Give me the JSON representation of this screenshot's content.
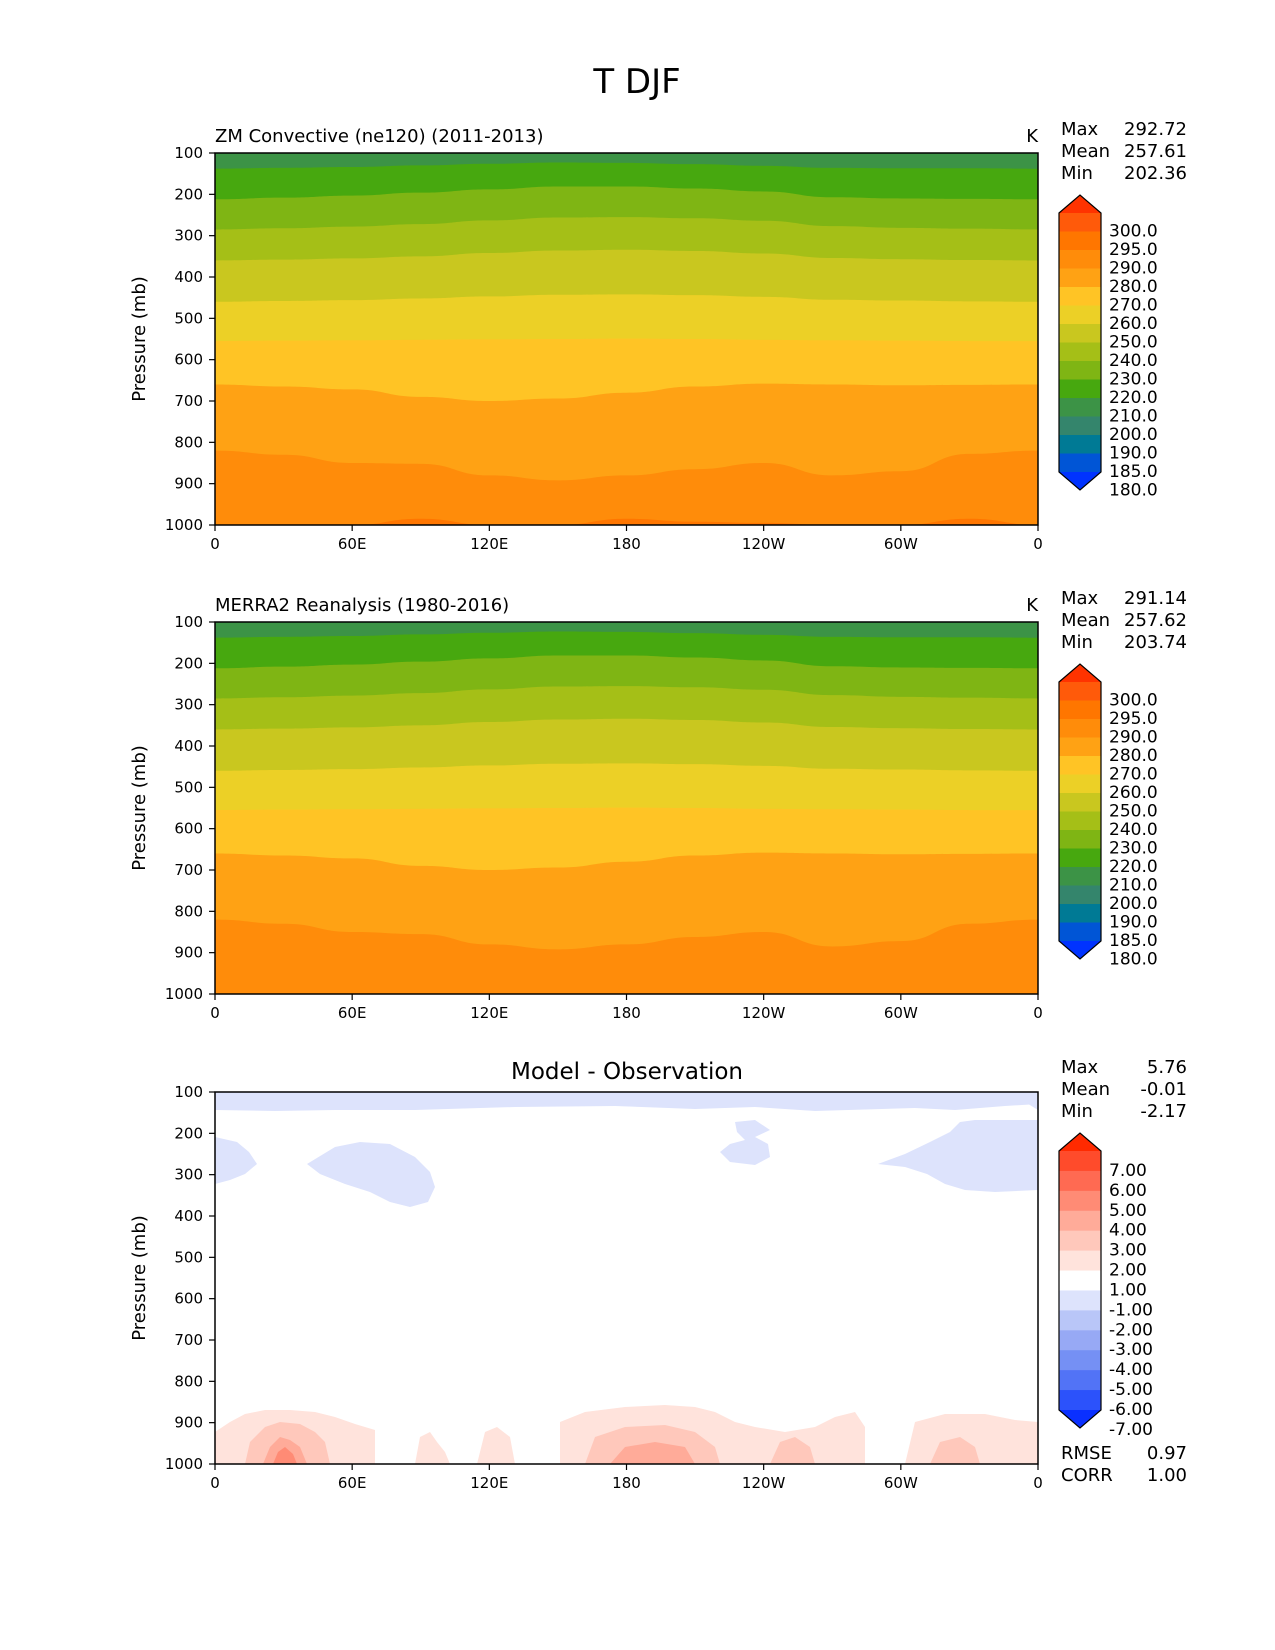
{
  "figure": {
    "title": "T DJF"
  },
  "chart_data": [
    {
      "type": "heatmap",
      "title": "ZM Convective (ne120) (2011-2013)",
      "units": "K",
      "ylabel": "Pressure (mb)",
      "x_ticks": [
        "0",
        "60E",
        "120E",
        "180",
        "120W",
        "60W",
        "0"
      ],
      "y_ticks": [
        "100",
        "200",
        "300",
        "400",
        "500",
        "600",
        "700",
        "800",
        "900",
        "1000"
      ],
      "xlim": [
        0,
        360
      ],
      "ylim": [
        100,
        1000
      ],
      "stats": [
        {
          "label": "Max",
          "value": "292.72"
        },
        {
          "label": "Mean",
          "value": "257.61"
        },
        {
          "label": "Min",
          "value": "202.36"
        }
      ],
      "colorbar": {
        "labels": [
          "300.0",
          "295.0",
          "290.0",
          "280.0",
          "270.0",
          "260.0",
          "250.0",
          "240.0",
          "230.0",
          "220.0",
          "210.0",
          "200.0",
          "190.0",
          "185.0",
          "180.0"
        ],
        "colors": [
          "#ff3300",
          "#ff5a0a",
          "#ff7600",
          "#ff8c0a",
          "#ffa214",
          "#ffc425",
          "#ecd026",
          "#c9c71f",
          "#a5bf17",
          "#7fb514",
          "#47a80f",
          "#3c9346",
          "#34856c",
          "#007a95",
          "#0055d6",
          "#0033ff"
        ]
      },
      "bands": [
        {
          "color": "#3c9346",
          "top": [
            100,
            100,
            100,
            100,
            100,
            100,
            100,
            100,
            100,
            100,
            100,
            100,
            100
          ]
        },
        {
          "color": "#47a80f",
          "top": [
            138,
            136,
            134,
            130,
            126,
            123,
            124,
            127,
            131,
            136,
            137,
            137,
            138
          ]
        },
        {
          "color": "#7fb514",
          "top": [
            212,
            208,
            203,
            196,
            188,
            181,
            181,
            186,
            193,
            207,
            210,
            211,
            212
          ]
        },
        {
          "color": "#a5bf17",
          "top": [
            285,
            282,
            278,
            272,
            263,
            256,
            255,
            258,
            264,
            277,
            281,
            283,
            285
          ]
        },
        {
          "color": "#c9c71f",
          "top": [
            360,
            358,
            355,
            350,
            342,
            336,
            334,
            337,
            343,
            354,
            357,
            359,
            360
          ]
        },
        {
          "color": "#ecd026",
          "top": [
            460,
            458,
            456,
            452,
            447,
            443,
            442,
            444,
            448,
            455,
            457,
            459,
            460
          ]
        },
        {
          "color": "#ffc425",
          "top": [
            555,
            554,
            553,
            552,
            551,
            550,
            549,
            550,
            552,
            553,
            554,
            555,
            555
          ]
        },
        {
          "color": "#ffa214",
          "top": [
            660,
            665,
            672,
            690,
            700,
            694,
            680,
            665,
            658,
            660,
            662,
            661,
            660
          ]
        },
        {
          "color": "#ff8c0a",
          "top": [
            820,
            830,
            850,
            852,
            880,
            892,
            880,
            865,
            850,
            880,
            870,
            828,
            820
          ]
        },
        {
          "color": "#ff7600",
          "top": [
            1000,
            1000,
            1000,
            985,
            1000,
            1000,
            985,
            992,
            995,
            1000,
            1000,
            985,
            1000
          ]
        }
      ]
    },
    {
      "type": "heatmap",
      "title": "MERRA2 Reanalysis (1980-2016)",
      "units": "K",
      "ylabel": "Pressure (mb)",
      "x_ticks": [
        "0",
        "60E",
        "120E",
        "180",
        "120W",
        "60W",
        "0"
      ],
      "y_ticks": [
        "100",
        "200",
        "300",
        "400",
        "500",
        "600",
        "700",
        "800",
        "900",
        "1000"
      ],
      "xlim": [
        0,
        360
      ],
      "ylim": [
        100,
        1000
      ],
      "stats": [
        {
          "label": "Max",
          "value": "291.14"
        },
        {
          "label": "Mean",
          "value": "257.62"
        },
        {
          "label": "Min",
          "value": "203.74"
        }
      ],
      "colorbar": {
        "labels": [
          "300.0",
          "295.0",
          "290.0",
          "280.0",
          "270.0",
          "260.0",
          "250.0",
          "240.0",
          "230.0",
          "220.0",
          "210.0",
          "200.0",
          "190.0",
          "185.0",
          "180.0"
        ],
        "colors": [
          "#ff3300",
          "#ff5a0a",
          "#ff7600",
          "#ff8c0a",
          "#ffa214",
          "#ffc425",
          "#ecd026",
          "#c9c71f",
          "#a5bf17",
          "#7fb514",
          "#47a80f",
          "#3c9346",
          "#34856c",
          "#007a95",
          "#0055d6",
          "#0033ff"
        ]
      },
      "bands": [
        {
          "color": "#3c9346",
          "top": [
            100,
            100,
            100,
            100,
            100,
            100,
            100,
            100,
            100,
            100,
            100,
            100,
            100
          ]
        },
        {
          "color": "#47a80f",
          "top": [
            138,
            136,
            134,
            130,
            126,
            123,
            124,
            127,
            131,
            136,
            137,
            137,
            138
          ]
        },
        {
          "color": "#7fb514",
          "top": [
            212,
            208,
            203,
            196,
            188,
            181,
            181,
            186,
            193,
            207,
            210,
            211,
            212
          ]
        },
        {
          "color": "#a5bf17",
          "top": [
            285,
            282,
            278,
            272,
            263,
            256,
            255,
            258,
            264,
            277,
            281,
            283,
            285
          ]
        },
        {
          "color": "#c9c71f",
          "top": [
            360,
            358,
            355,
            350,
            342,
            336,
            334,
            337,
            343,
            354,
            357,
            359,
            360
          ]
        },
        {
          "color": "#ecd026",
          "top": [
            460,
            458,
            456,
            452,
            447,
            443,
            442,
            444,
            448,
            455,
            457,
            459,
            460
          ]
        },
        {
          "color": "#ffc425",
          "top": [
            555,
            554,
            553,
            552,
            551,
            550,
            549,
            550,
            552,
            553,
            554,
            555,
            555
          ]
        },
        {
          "color": "#ffa214",
          "top": [
            660,
            665,
            672,
            690,
            700,
            694,
            680,
            665,
            658,
            660,
            662,
            661,
            660
          ]
        },
        {
          "color": "#ff8c0a",
          "top": [
            820,
            830,
            850,
            855,
            880,
            892,
            880,
            862,
            850,
            885,
            872,
            830,
            820
          ]
        }
      ]
    },
    {
      "type": "heatmap",
      "title": "Model - Observation",
      "units": "",
      "ylabel": "Pressure (mb)",
      "x_ticks": [
        "0",
        "60E",
        "120E",
        "180",
        "120W",
        "60W",
        "0"
      ],
      "y_ticks": [
        "100",
        "200",
        "300",
        "400",
        "500",
        "600",
        "700",
        "800",
        "900",
        "1000"
      ],
      "xlim": [
        0,
        360
      ],
      "ylim": [
        100,
        1000
      ],
      "stats": [
        {
          "label": "Max",
          "value": "5.76"
        },
        {
          "label": "Mean",
          "value": "-0.01"
        },
        {
          "label": "Min",
          "value": "-2.17"
        }
      ],
      "extra_stats": [
        {
          "label": "RMSE",
          "value": "0.97"
        },
        {
          "label": "CORR",
          "value": "1.00"
        }
      ],
      "colorbar": {
        "labels": [
          "7.00",
          "6.00",
          "5.00",
          "4.00",
          "3.00",
          "2.00",
          "1.00",
          "-1.00",
          "-2.00",
          "-3.00",
          "-4.00",
          "-5.00",
          "-6.00",
          "-7.00"
        ],
        "colors": [
          "#ff2a00",
          "#ff4b2b",
          "#ff6a52",
          "#ff8b75",
          "#ffab99",
          "#ffc8bb",
          "#ffe3dc",
          "#ffffff",
          "#dde3fc",
          "#b9c6f8",
          "#97a9f5",
          "#7590f4",
          "#5273f6",
          "#2c52fb",
          "#0a30ff"
        ]
      }
    }
  ]
}
